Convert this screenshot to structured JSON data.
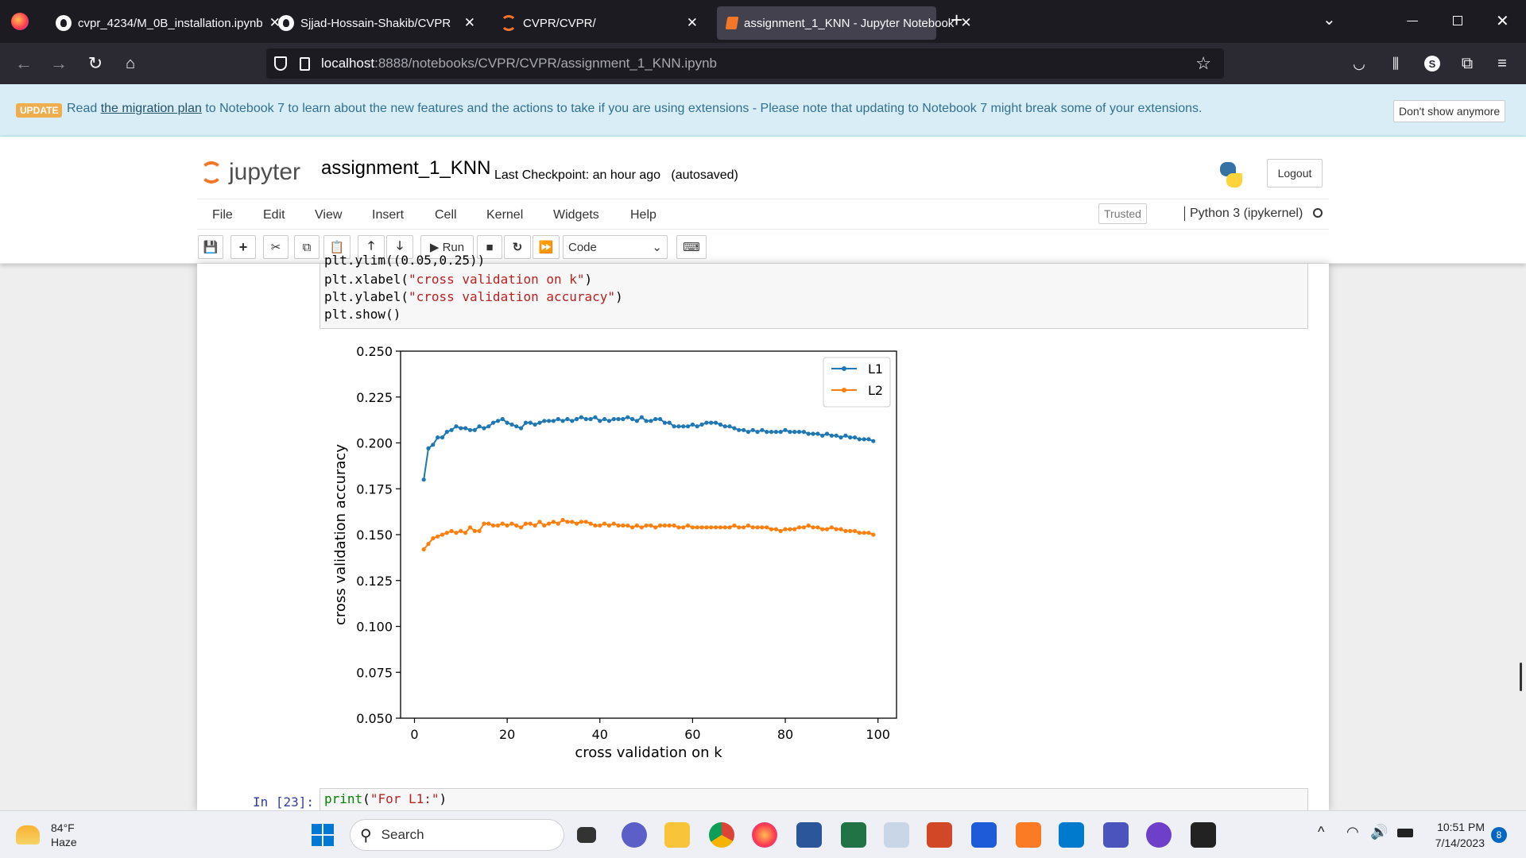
{
  "browser": {
    "tabs": [
      {
        "label": "cvpr_4234/M_0B_installation.ipynb",
        "icon": "github-icon",
        "active": false
      },
      {
        "label": "Sjjad-Hossain-Shakib/CVPR",
        "icon": "github-icon",
        "active": false
      },
      {
        "label": "CVPR/CVPR/",
        "icon": "jupyter-icon",
        "active": false
      },
      {
        "label": "assignment_1_KNN - Jupyter Notebook",
        "icon": "notebook-icon",
        "active": true
      }
    ],
    "new_tab": "+",
    "url_host": "localhost",
    "url_path": ":8888/notebooks/CVPR/CVPR/assignment_1_KNN.ipynb"
  },
  "banner": {
    "badge": "UPDATE",
    "text_before": "Read ",
    "link": "the migration plan",
    "text_after": " to Notebook 7 to learn about the new features and the actions to take if you are using extensions - Please note that updating to Notebook 7 might break some of your extensions.",
    "dismiss": "Don't show anymore"
  },
  "jupyter": {
    "logo_text": "jupyter",
    "notebook_name": "assignment_1_KNN",
    "checkpoint": "Last Checkpoint: an hour ago",
    "autosaved": "(autosaved)",
    "logout": "Logout",
    "menu": [
      "File",
      "Edit",
      "View",
      "Insert",
      "Cell",
      "Kernel",
      "Widgets",
      "Help"
    ],
    "trusted": "Trusted",
    "kernel": "Python 3 (ipykernel)",
    "toolbar": {
      "run": "Run",
      "cell_type": "Code"
    }
  },
  "cell": {
    "line0": "plt.ylim((0.05,0.25))",
    "line1_a": "plt.xlabel(",
    "line1_s": "\"cross validation on k\"",
    "line1_b": ")",
    "line2_a": "plt.ylabel(",
    "line2_s": "\"cross validation accuracy\"",
    "line2_b": ")",
    "line3": "plt.show()"
  },
  "next_cell": {
    "prompt": "In [23]:",
    "code_fn": "print",
    "code_paren": "(",
    "code_str": "\"For L1:\"",
    "code_close": ")"
  },
  "chart_data": {
    "type": "line",
    "xlabel": "cross validation on k",
    "ylabel": "cross validation accuracy",
    "xlim": [
      -3,
      104
    ],
    "ylim": [
      0.05,
      0.25
    ],
    "xticks": [
      0,
      20,
      40,
      60,
      80,
      100
    ],
    "yticks": [
      0.05,
      0.075,
      0.1,
      0.125,
      0.15,
      0.175,
      0.2,
      0.225,
      0.25
    ],
    "ytick_labels": [
      "0.050",
      "0.075",
      "0.100",
      "0.125",
      "0.150",
      "0.175",
      "0.200",
      "0.225",
      "0.250"
    ],
    "legend_position": "top-right",
    "grid": false,
    "x_start": 2,
    "x_end": 99,
    "series": [
      {
        "name": "L1",
        "color": "#1f77b4",
        "values": [
          0.18,
          0.197,
          0.199,
          0.203,
          0.203,
          0.206,
          0.207,
          0.209,
          0.208,
          0.208,
          0.207,
          0.207,
          0.209,
          0.208,
          0.209,
          0.211,
          0.212,
          0.213,
          0.211,
          0.21,
          0.209,
          0.208,
          0.211,
          0.211,
          0.21,
          0.211,
          0.212,
          0.212,
          0.212,
          0.213,
          0.212,
          0.213,
          0.212,
          0.213,
          0.214,
          0.213,
          0.213,
          0.214,
          0.212,
          0.213,
          0.212,
          0.213,
          0.213,
          0.213,
          0.214,
          0.213,
          0.212,
          0.214,
          0.212,
          0.212,
          0.213,
          0.213,
          0.211,
          0.211,
          0.209,
          0.209,
          0.209,
          0.209,
          0.21,
          0.209,
          0.21,
          0.211,
          0.211,
          0.211,
          0.21,
          0.209,
          0.209,
          0.208,
          0.207,
          0.207,
          0.206,
          0.207,
          0.206,
          0.207,
          0.206,
          0.206,
          0.206,
          0.206,
          0.207,
          0.206,
          0.206,
          0.206,
          0.206,
          0.205,
          0.205,
          0.205,
          0.204,
          0.205,
          0.204,
          0.204,
          0.203,
          0.204,
          0.203,
          0.203,
          0.202,
          0.202,
          0.202,
          0.201
        ]
      },
      {
        "name": "L2",
        "color": "#ff7f0e",
        "values": [
          0.142,
          0.145,
          0.148,
          0.149,
          0.15,
          0.151,
          0.152,
          0.151,
          0.152,
          0.151,
          0.154,
          0.152,
          0.152,
          0.156,
          0.156,
          0.155,
          0.155,
          0.156,
          0.155,
          0.156,
          0.155,
          0.154,
          0.156,
          0.156,
          0.155,
          0.157,
          0.155,
          0.156,
          0.157,
          0.156,
          0.158,
          0.157,
          0.157,
          0.156,
          0.157,
          0.157,
          0.156,
          0.155,
          0.155,
          0.156,
          0.155,
          0.156,
          0.155,
          0.155,
          0.155,
          0.154,
          0.155,
          0.154,
          0.155,
          0.155,
          0.154,
          0.155,
          0.155,
          0.155,
          0.155,
          0.154,
          0.154,
          0.155,
          0.154,
          0.154,
          0.154,
          0.154,
          0.154,
          0.154,
          0.154,
          0.154,
          0.154,
          0.155,
          0.154,
          0.154,
          0.155,
          0.154,
          0.154,
          0.154,
          0.154,
          0.153,
          0.153,
          0.152,
          0.153,
          0.153,
          0.153,
          0.154,
          0.154,
          0.155,
          0.154,
          0.154,
          0.153,
          0.153,
          0.154,
          0.153,
          0.153,
          0.152,
          0.152,
          0.152,
          0.151,
          0.151,
          0.151,
          0.15
        ]
      }
    ]
  },
  "taskbar": {
    "weather_temp": "84°F",
    "weather_desc": "Haze",
    "search": "Search",
    "time": "10:51 PM",
    "date": "7/14/2023",
    "notif_count": "8"
  }
}
